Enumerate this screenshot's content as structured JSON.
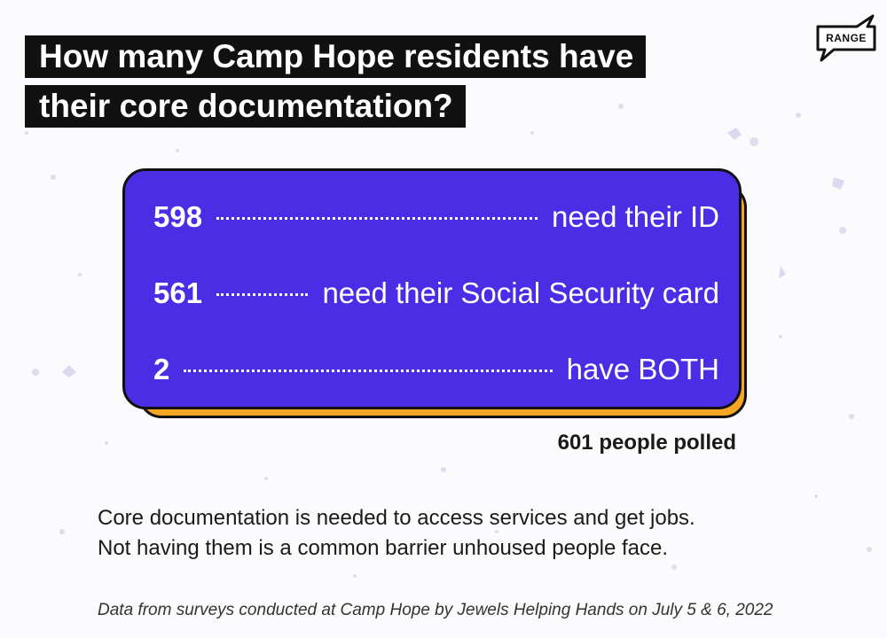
{
  "title": {
    "line1": "How many Camp Hope residents have",
    "line2": "their core documentation?"
  },
  "logo": {
    "text": "RANGE"
  },
  "stats": [
    {
      "number": "598",
      "label": "need their ID"
    },
    {
      "number": "561",
      "label": "need their Social Security card"
    },
    {
      "number": "2",
      "label": "have BOTH"
    }
  ],
  "polled": "601 people polled",
  "body": {
    "line1": "Core documentation is needed to access services and get jobs.",
    "line2": "Not having them is a common barrier unhoused people face."
  },
  "source": "Data from surveys conducted at Camp Hope by Jewels Helping Hands on July 5 & 6, 2022",
  "colors": {
    "card": "#4b2de6",
    "card_shadow": "#f5a623",
    "title_bg": "#111111",
    "background": "#fbfbfd"
  }
}
